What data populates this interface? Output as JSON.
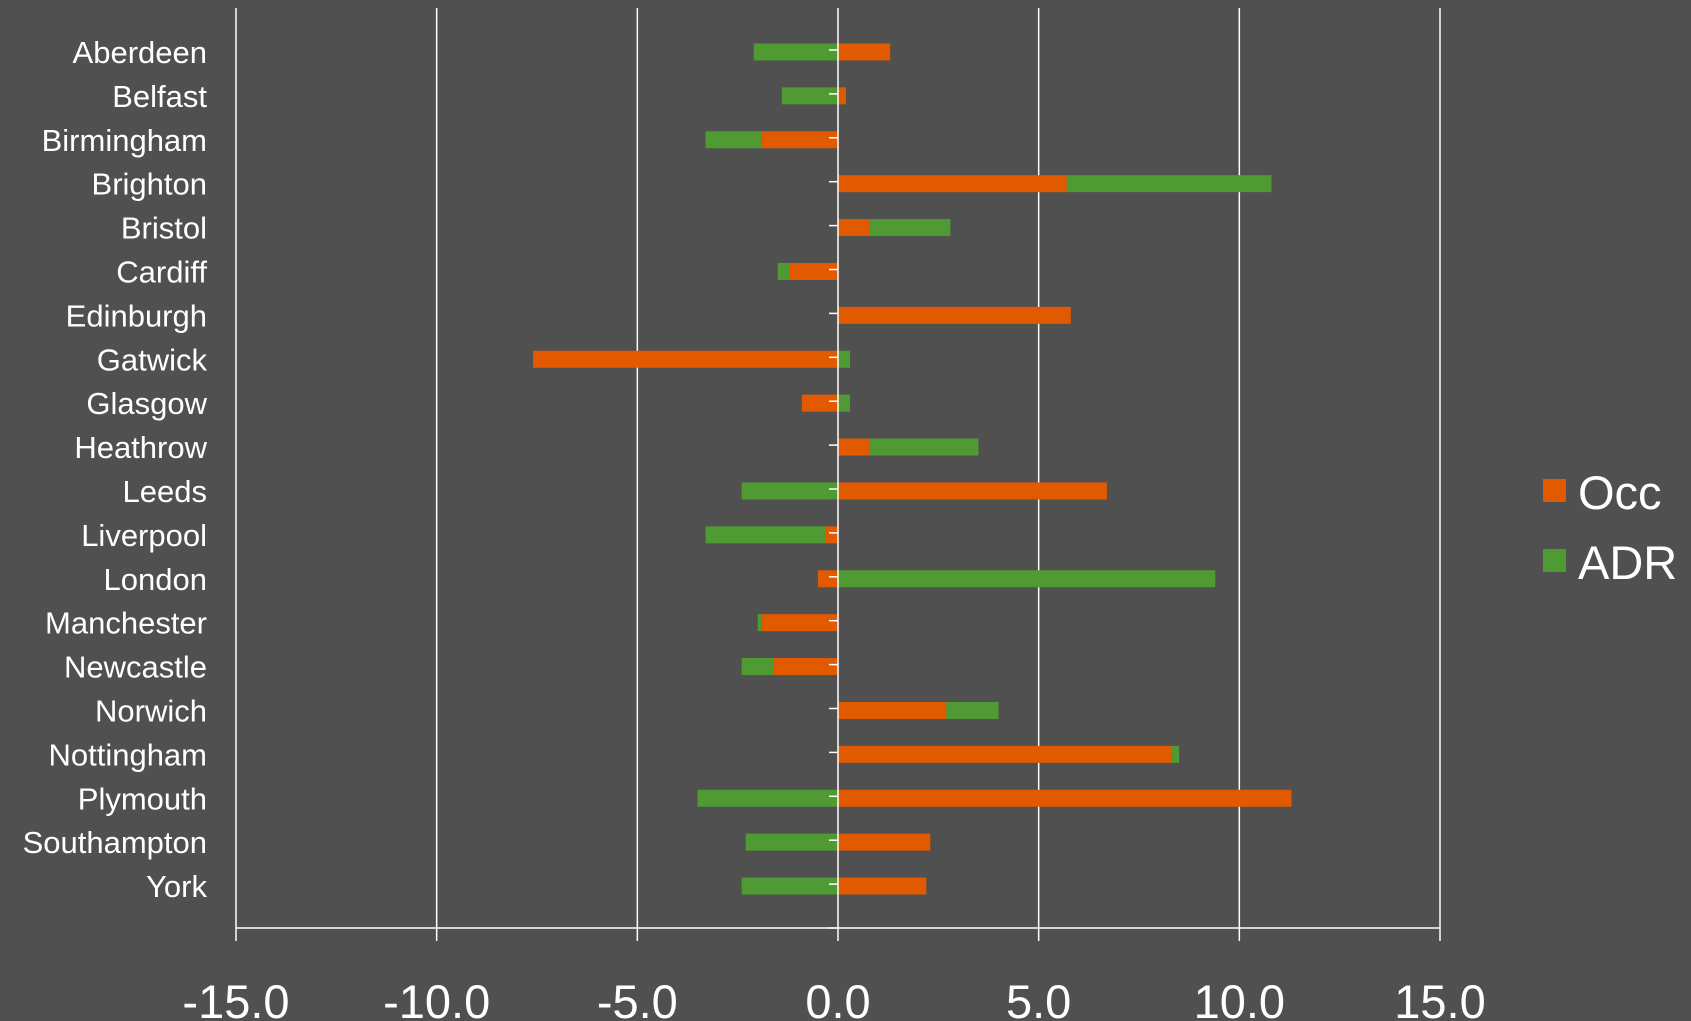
{
  "colors": {
    "background": "#505050",
    "occ": "#e15a00",
    "adr": "#4f9a32",
    "axis": "#ffffff",
    "gridline": "#ffffff",
    "text": "#ffffff"
  },
  "chart_data": {
    "type": "bar",
    "orientation": "horizontal",
    "stacked": true,
    "title": "",
    "xlabel": "",
    "ylabel": "",
    "xlim": [
      -15,
      15
    ],
    "x_ticks": [
      -15,
      -10,
      -5,
      0,
      5,
      10,
      15
    ],
    "x_tick_labels": [
      "-15.0",
      "-10.0",
      "-5.0",
      "0.0",
      "5.0",
      "10.0",
      "15.0"
    ],
    "grid": "vertical",
    "legend_position": "right",
    "categories": [
      "Aberdeen",
      "Belfast",
      "Birmingham",
      "Brighton",
      "Bristol",
      "Cardiff",
      "Edinburgh",
      "Gatwick",
      "Glasgow",
      "Heathrow",
      "Leeds",
      "Liverpool",
      "London",
      "Manchester",
      "Newcastle",
      "Norwich",
      "Nottingham",
      "Plymouth",
      "Southampton",
      "York"
    ],
    "series": [
      {
        "name": "Occ",
        "values": [
          1.3,
          0.2,
          -1.9,
          5.7,
          0.8,
          -1.2,
          5.8,
          -7.6,
          -0.9,
          0.8,
          6.7,
          -0.3,
          -0.5,
          -1.9,
          -1.6,
          2.7,
          8.3,
          11.3,
          2.3,
          2.2
        ]
      },
      {
        "name": "ADR",
        "values": [
          -2.1,
          -1.4,
          -1.4,
          5.1,
          2.0,
          -0.3,
          0.0,
          0.3,
          0.3,
          2.7,
          -2.4,
          -3.0,
          9.4,
          -0.1,
          -0.8,
          1.3,
          0.2,
          -3.5,
          -2.3,
          -2.4
        ]
      }
    ]
  }
}
